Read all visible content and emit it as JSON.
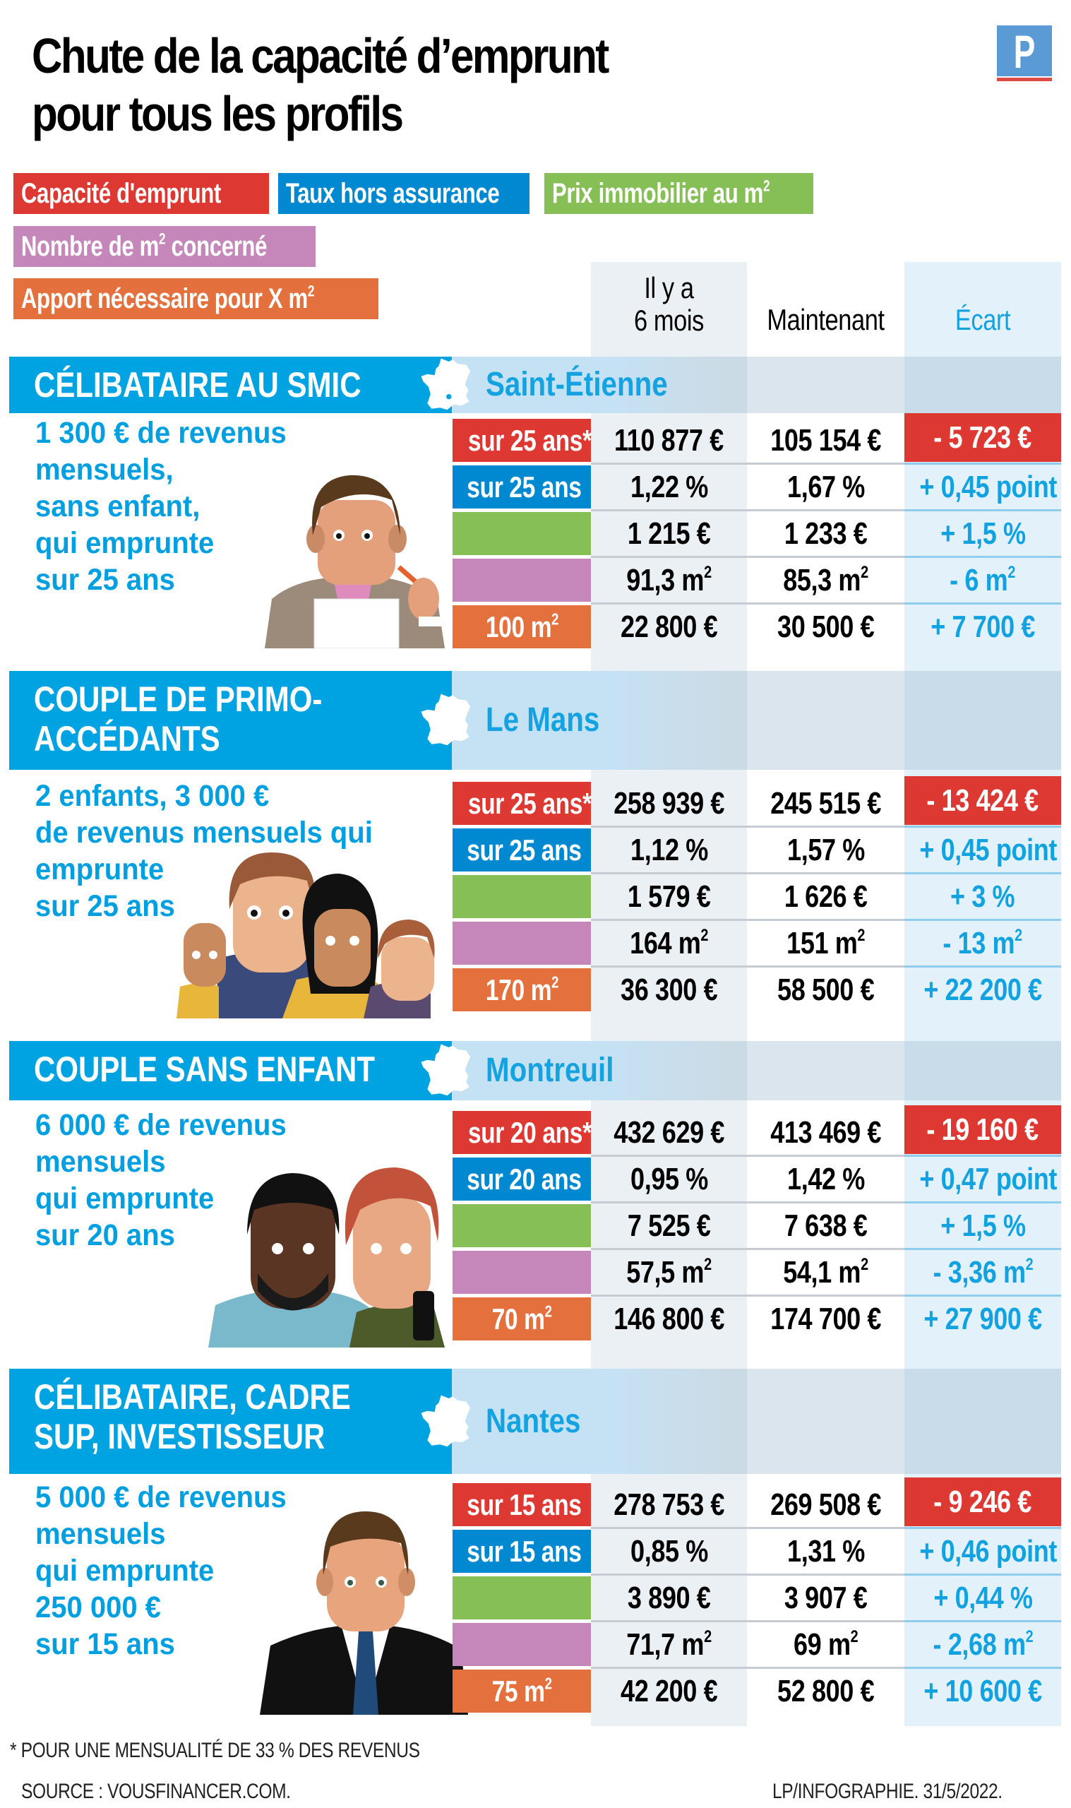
{
  "header": {
    "title_line1": "Chute de la capacité d’emprunt",
    "title_line2": "pour tous les profils",
    "logo_letter": "P"
  },
  "colors": {
    "capacite": "#de3833",
    "taux": "#0089d0",
    "prix": "#86bf55",
    "nombre": "#c587b9",
    "apport": "#e3703d",
    "section_blue": "#00a3e2",
    "accent_text": "#00a0e0"
  },
  "legend": [
    {
      "label": "Capacité d'emprunt",
      "color": "#de3833"
    },
    {
      "label": "Taux hors assurance",
      "color": "#0089d0"
    },
    {
      "label": "Prix immobilier au m²",
      "color": "#86bf55"
    },
    {
      "label": "Nombre de m² concerné",
      "color": "#c587b9"
    },
    {
      "label": "Apport nécessaire pour X m²",
      "color": "#e3703d"
    }
  ],
  "columns": {
    "before_line1": "Il y a",
    "before_line2": "6 mois",
    "now": "Maintenant",
    "diff": "Écart"
  },
  "profiles": [
    {
      "title_line1": "CÉLIBATAIRE AU SMIC",
      "title_line2": "",
      "city": "Saint-Étienne",
      "description": "1 300 € de revenus\nmensuels,\nsans enfant,\nqui emprunte\nsur 25 ans",
      "rows": [
        {
          "label": "sur 25 ans*",
          "before": "110 877 €",
          "now": "105 154 €",
          "diff": "- 5 723 €"
        },
        {
          "label": "sur 25 ans",
          "before": "1,22 %",
          "now": "1,67 %",
          "diff": "+ 0,45 point"
        },
        {
          "label": "",
          "before": "1 215 €",
          "now": "1 233 €",
          "diff": "+ 1,5 %"
        },
        {
          "label": "",
          "before": "91,3 m²",
          "now": "85,3 m²",
          "diff": "- 6 m²"
        },
        {
          "label": "100 m²",
          "before": "22 800 €",
          "now": "30 500 €",
          "diff": "+ 7 700 €"
        }
      ]
    },
    {
      "title_line1": "COUPLE DE PRIMO-",
      "title_line2": "ACCÉDANTS",
      "city": "Le Mans",
      "description": "2 enfants, 3 000 €\nde revenus mensuels qui\nemprunte\nsur 25 ans",
      "rows": [
        {
          "label": "sur 25 ans*",
          "before": "258 939 €",
          "now": "245 515 €",
          "diff": "- 13 424 €"
        },
        {
          "label": "sur 25 ans",
          "before": "1,12 %",
          "now": "1,57 %",
          "diff": "+ 0,45 point"
        },
        {
          "label": "",
          "before": "1 579 €",
          "now": "1 626 €",
          "diff": "+ 3 %"
        },
        {
          "label": "",
          "before": "164 m²",
          "now": "151 m²",
          "diff": "- 13 m²"
        },
        {
          "label": "170 m²",
          "before": "36 300 €",
          "now": "58 500 €",
          "diff": "+ 22 200 €"
        }
      ]
    },
    {
      "title_line1": "COUPLE SANS ENFANT",
      "title_line2": "",
      "city": "Montreuil",
      "description": "6 000 € de revenus\nmensuels\nqui emprunte\nsur 20 ans",
      "rows": [
        {
          "label": "sur 20 ans*",
          "before": "432 629 €",
          "now": "413 469 €",
          "diff": "- 19 160 €"
        },
        {
          "label": "sur 20 ans",
          "before": "0,95 %",
          "now": "1,42 %",
          "diff": "+ 0,47 point"
        },
        {
          "label": "",
          "before": "7 525 €",
          "now": "7 638 €",
          "diff": "+ 1,5 %"
        },
        {
          "label": "",
          "before": "57,5 m²",
          "now": "54,1 m²",
          "diff": "- 3,36 m²"
        },
        {
          "label": "70 m²",
          "before": "146 800 €",
          "now": "174 700 €",
          "diff": "+ 27 900 €"
        }
      ]
    },
    {
      "title_line1": "CÉLIBATAIRE, CADRE",
      "title_line2": "SUP, INVESTISSEUR",
      "city": "Nantes",
      "description": "5 000 € de revenus\nmensuels\nqui emprunte\n250 000 €\nsur 15 ans",
      "rows": [
        {
          "label": "sur 15 ans",
          "before": "278 753 €",
          "now": "269 508 €",
          "diff": "- 9 246 €"
        },
        {
          "label": "sur 15 ans",
          "before": "0,85 %",
          "now": "1,31 %",
          "diff": "+ 0,46 point"
        },
        {
          "label": "",
          "before": "3 890 €",
          "now": "3 907 €",
          "diff": "+ 0,44 %"
        },
        {
          "label": "",
          "before": "71,7 m²",
          "now": "69 m²",
          "diff": "- 2,68 m²"
        },
        {
          "label": "75 m²",
          "before": "42 200 €",
          "now": "52 800 €",
          "diff": "+ 10 600 €"
        }
      ]
    }
  ],
  "footer": {
    "footnote": "* POUR UNE MENSUALITÉ DE 33 % DES REVENUS",
    "source": "SOURCE : VOUSFINANCER.COM.",
    "credit": "LP/INFOGRAPHIE. 31/5/2022."
  }
}
